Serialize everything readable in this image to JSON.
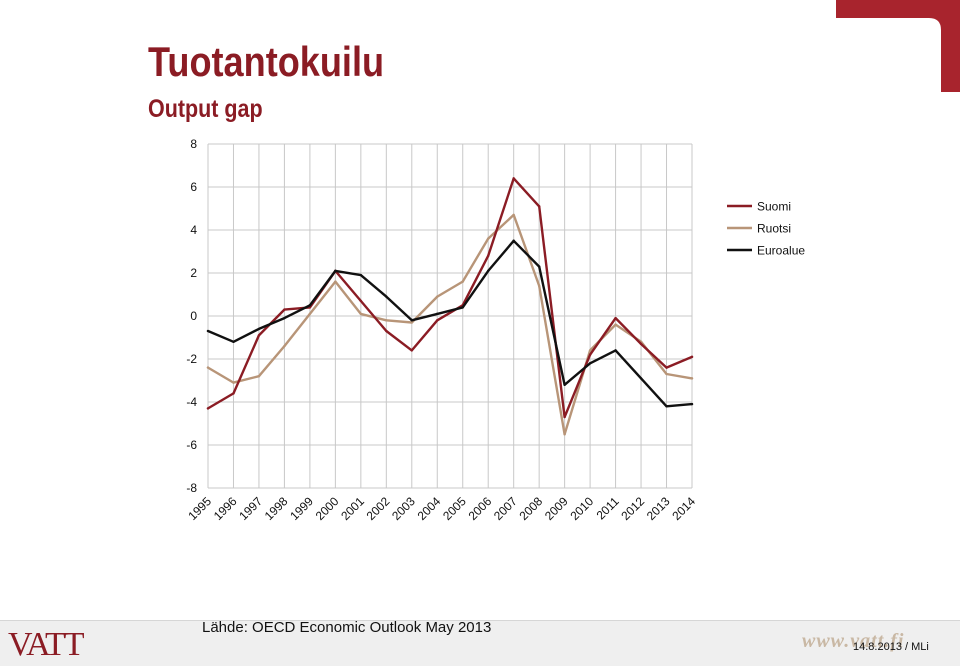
{
  "slide": {
    "title": "Tuotantokuilu",
    "subtitle": "Output gap",
    "source": "Lähde: OECD Economic Outlook May 2013",
    "brand_logo": "VATT",
    "web_logo": "www.vatt.fi",
    "date_author": "14.8.2013 / MLi"
  },
  "colors": {
    "brand_red": "#8b1c24",
    "suomi": "#8b1c24",
    "ruotsi": "#b89578",
    "euroalue": "#111111",
    "grid": "#c8c8c8"
  },
  "chart_data": {
    "type": "line",
    "title": "",
    "xlabel": "",
    "ylabel": "",
    "x": [
      "1995",
      "1996",
      "1997",
      "1998",
      "1999",
      "2000",
      "2001",
      "2002",
      "2003",
      "2004",
      "2005",
      "2006",
      "2007",
      "2008",
      "2009",
      "2010",
      "2011",
      "2012",
      "2013",
      "2014"
    ],
    "ylim": [
      -8,
      8
    ],
    "yticks": [
      "8",
      "6",
      "4",
      "2",
      "0",
      "-2",
      "-4",
      "-6",
      "-8"
    ],
    "grid": true,
    "legend_position": "right",
    "series": [
      {
        "name": "Suomi",
        "color": "#8b1c24",
        "values": [
          -4.3,
          -3.6,
          -0.9,
          0.3,
          0.4,
          2.1,
          0.7,
          -0.7,
          -1.6,
          -0.2,
          0.5,
          2.8,
          6.4,
          5.1,
          -4.7,
          -1.8,
          -0.1,
          -1.3,
          -2.4,
          -1.9
        ]
      },
      {
        "name": "Ruotsi",
        "color": "#b89578",
        "values": [
          -2.4,
          -3.1,
          -2.8,
          -1.4,
          0.1,
          1.6,
          0.1,
          -0.2,
          -0.3,
          0.9,
          1.6,
          3.6,
          4.7,
          1.4,
          -5.5,
          -1.6,
          -0.4,
          -1.2,
          -2.7,
          -2.9
        ]
      },
      {
        "name": "Euroalue",
        "color": "#111111",
        "values": [
          -0.7,
          -1.2,
          -0.6,
          -0.1,
          0.5,
          2.1,
          1.9,
          0.9,
          -0.2,
          0.1,
          0.4,
          2.1,
          3.5,
          2.3,
          -3.2,
          -2.2,
          -1.6,
          -2.9,
          -4.2,
          -4.1
        ]
      }
    ]
  }
}
